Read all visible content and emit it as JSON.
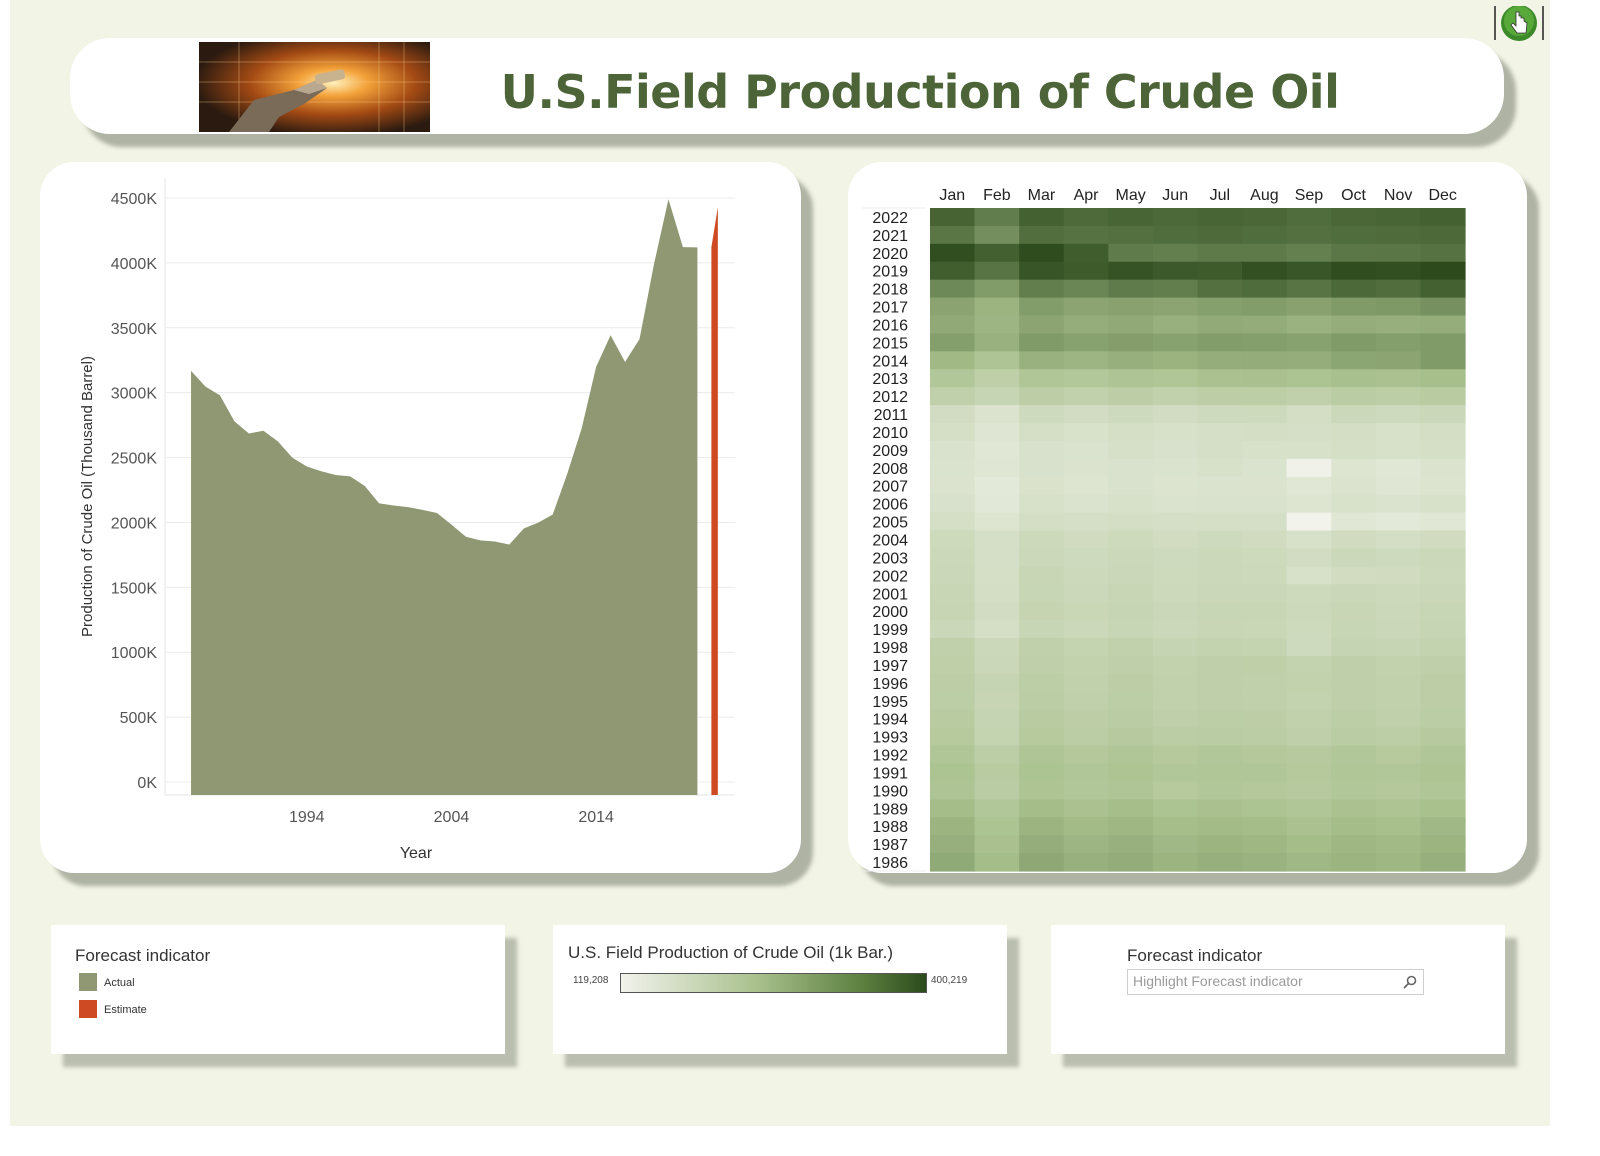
{
  "header": {
    "title": "U.S.Field Production of Crude Oil"
  },
  "chart_data": [
    {
      "type": "area",
      "title": "",
      "xlabel": "Year",
      "ylabel": "Production of Crude Oil (Thousand Barrel)",
      "ylim": [
        0,
        4500000
      ],
      "ytick_labels": [
        "0K",
        "500K",
        "1000K",
        "1500K",
        "2000K",
        "2500K",
        "3000K",
        "3500K",
        "4000K",
        "4500K"
      ],
      "xtick_labels": [
        "1994",
        "2004",
        "2014"
      ],
      "grid": true,
      "series": [
        {
          "name": "Actual",
          "color": "#8f9873",
          "x": [
            1986,
            1987,
            1988,
            1989,
            1990,
            1991,
            1992,
            1993,
            1994,
            1995,
            1996,
            1997,
            1998,
            1999,
            2000,
            2001,
            2002,
            2003,
            2004,
            2005,
            2006,
            2007,
            2008,
            2009,
            2010,
            2011,
            2012,
            2013,
            2014,
            2015,
            2016,
            2017,
            2018,
            2019,
            2020,
            2021
          ],
          "values": [
            3168000,
            3047000,
            2979000,
            2779000,
            2685000,
            2707000,
            2625000,
            2499000,
            2431000,
            2394000,
            2366000,
            2355000,
            2282000,
            2147000,
            2131000,
            2118000,
            2097000,
            2073000,
            1983000,
            1890000,
            1862000,
            1853000,
            1830000,
            1953000,
            1999000,
            2061000,
            2373000,
            2724000,
            3199000,
            3442000,
            3236000,
            3413000,
            3990000,
            4490000,
            4121000,
            4120000
          ]
        },
        {
          "name": "Estimate",
          "color": "#cd4a22",
          "x": [
            2021,
            2022
          ],
          "values": [
            4120000,
            4430000
          ]
        }
      ]
    },
    {
      "type": "heatmap",
      "months": [
        "Jan",
        "Feb",
        "Mar",
        "Apr",
        "May",
        "Jun",
        "Jul",
        "Aug",
        "Sep",
        "Oct",
        "Nov",
        "Dec"
      ],
      "years": [
        2022,
        2021,
        2020,
        2019,
        2018,
        2017,
        2016,
        2015,
        2014,
        2013,
        2012,
        2011,
        2010,
        2009,
        2008,
        2007,
        2006,
        2005,
        2004,
        2003,
        2002,
        2001,
        2000,
        1999,
        1998,
        1997,
        1996,
        1995,
        1994,
        1993,
        1992,
        1991,
        1990,
        1989,
        1988,
        1987,
        1986
      ],
      "color_min": 119208,
      "color_max": 400219,
      "values": [
        [
          367000,
          333000,
          370000,
          358000,
          365000,
          360000,
          365000,
          362000,
          355000,
          362000,
          365000,
          370000
        ],
        [
          343000,
          310000,
          353000,
          348000,
          350000,
          355000,
          358000,
          355000,
          350000,
          355000,
          357000,
          359000
        ],
        [
          395000,
          372000,
          398000,
          375000,
          336000,
          331000,
          338000,
          338000,
          330000,
          341000,
          342000,
          348000
        ],
        [
          374000,
          345000,
          386000,
          378000,
          389000,
          380000,
          378000,
          392000,
          385000,
          396000,
          394000,
          408000
        ],
        [
          318000,
          294000,
          332000,
          322000,
          336000,
          332000,
          350000,
          356000,
          345000,
          360000,
          354000,
          370000
        ],
        [
          283000,
          262000,
          292000,
          282000,
          286000,
          282000,
          288000,
          292000,
          286000,
          295000,
          298000,
          308000
        ],
        [
          276000,
          260000,
          282000,
          270000,
          276000,
          266000,
          274000,
          272000,
          264000,
          271000,
          268000,
          270000
        ],
        [
          290000,
          265000,
          295000,
          285000,
          291000,
          285000,
          292000,
          290000,
          285000,
          295000,
          290000,
          295000
        ],
        [
          255000,
          235000,
          265000,
          260000,
          268000,
          263000,
          270000,
          272000,
          270000,
          280000,
          282000,
          295000
        ],
        [
          228000,
          207000,
          232000,
          227000,
          235000,
          232000,
          240000,
          242000,
          238000,
          245000,
          240000,
          247000
        ],
        [
          205000,
          194000,
          210000,
          204000,
          210000,
          204000,
          210000,
          212000,
          205000,
          215000,
          212000,
          218000
        ],
        [
          175000,
          158000,
          180000,
          175000,
          180000,
          175000,
          180000,
          182000,
          172000,
          185000,
          181000,
          188000
        ],
        [
          169000,
          153000,
          170000,
          164000,
          170000,
          166000,
          168000,
          171000,
          168000,
          172000,
          166000,
          172000
        ],
        [
          162000,
          150000,
          163000,
          160000,
          167000,
          163000,
          168000,
          166000,
          165000,
          170000,
          166000,
          169000
        ],
        [
          160000,
          152000,
          163000,
          158000,
          162000,
          160000,
          165000,
          160000,
          122000,
          155000,
          150000,
          158000
        ],
        [
          159000,
          144000,
          161000,
          155000,
          162000,
          156000,
          160000,
          158000,
          150000,
          158000,
          152000,
          157000
        ],
        [
          163000,
          147000,
          165000,
          160000,
          165000,
          160000,
          162000,
          162000,
          155000,
          164000,
          160000,
          165000
        ],
        [
          170000,
          155000,
          172000,
          168000,
          172000,
          168000,
          170000,
          168000,
          120000,
          150000,
          145000,
          150000
        ],
        [
          182000,
          168000,
          184000,
          178000,
          182000,
          176000,
          180000,
          178000,
          165000,
          178000,
          172000,
          178000
        ],
        [
          185000,
          168000,
          186000,
          180000,
          186000,
          180000,
          186000,
          182000,
          175000,
          185000,
          180000,
          186000
        ],
        [
          188000,
          170000,
          190000,
          184000,
          188000,
          182000,
          186000,
          184000,
          166000,
          176000,
          178000,
          184000
        ],
        [
          190000,
          172000,
          192000,
          186000,
          190000,
          184000,
          188000,
          188000,
          182000,
          188000,
          184000,
          188000
        ],
        [
          193000,
          175000,
          195000,
          189000,
          194000,
          188000,
          192000,
          190000,
          184000,
          190000,
          186000,
          192000
        ],
        [
          188000,
          170000,
          192000,
          186000,
          192000,
          186000,
          190000,
          189000,
          182000,
          192000,
          188000,
          194000
        ],
        [
          205000,
          185000,
          206000,
          198000,
          204000,
          196000,
          200000,
          198000,
          180000,
          196000,
          194000,
          200000
        ],
        [
          207000,
          188000,
          208000,
          202000,
          208000,
          202000,
          208000,
          207000,
          200000,
          208000,
          202000,
          208000
        ],
        [
          210000,
          196000,
          212000,
          204000,
          210000,
          204000,
          208000,
          206000,
          202000,
          208000,
          204000,
          210000
        ],
        [
          212000,
          193000,
          214000,
          206000,
          212000,
          204000,
          208000,
          206000,
          200000,
          208000,
          204000,
          210000
        ],
        [
          218000,
          196000,
          218000,
          210000,
          216000,
          208000,
          212000,
          210000,
          204000,
          212000,
          206000,
          214000
        ],
        [
          222000,
          198000,
          222000,
          214000,
          220000,
          214000,
          216000,
          214000,
          208000,
          216000,
          212000,
          220000
        ],
        [
          232000,
          212000,
          234000,
          226000,
          232000,
          224000,
          228000,
          226000,
          220000,
          228000,
          222000,
          230000
        ],
        [
          238000,
          218000,
          238000,
          230000,
          236000,
          228000,
          232000,
          230000,
          224000,
          232000,
          228000,
          236000
        ],
        [
          235000,
          215000,
          236000,
          228000,
          234000,
          222000,
          228000,
          226000,
          220000,
          228000,
          226000,
          232000
        ],
        [
          250000,
          228000,
          250000,
          240000,
          248000,
          238000,
          242000,
          238000,
          232000,
          240000,
          236000,
          244000
        ],
        [
          262000,
          238000,
          262000,
          252000,
          258000,
          248000,
          252000,
          250000,
          240000,
          250000,
          246000,
          256000
        ],
        [
          268000,
          242000,
          270000,
          260000,
          266000,
          256000,
          262000,
          258000,
          250000,
          258000,
          254000,
          262000
        ],
        [
          275000,
          250000,
          278000,
          266000,
          272000,
          262000,
          268000,
          264000,
          256000,
          262000,
          258000,
          268000
        ]
      ]
    }
  ],
  "legends": {
    "forecast": {
      "title": "Forecast indicator",
      "items": [
        {
          "label": "Actual",
          "color": "#8f9873"
        },
        {
          "label": "Estimate",
          "color": "#cd4a22"
        }
      ]
    },
    "color_scale": {
      "title": "U.S. Field Production of Crude Oil (1k Bar.)",
      "min_label": "119,208",
      "max_label": "400,219"
    },
    "highlight": {
      "title": "Forecast indicator",
      "placeholder": "Highlight Forecast indicator"
    }
  },
  "icons": {
    "search": "search-icon",
    "hand": "hand-pointer-icon"
  }
}
